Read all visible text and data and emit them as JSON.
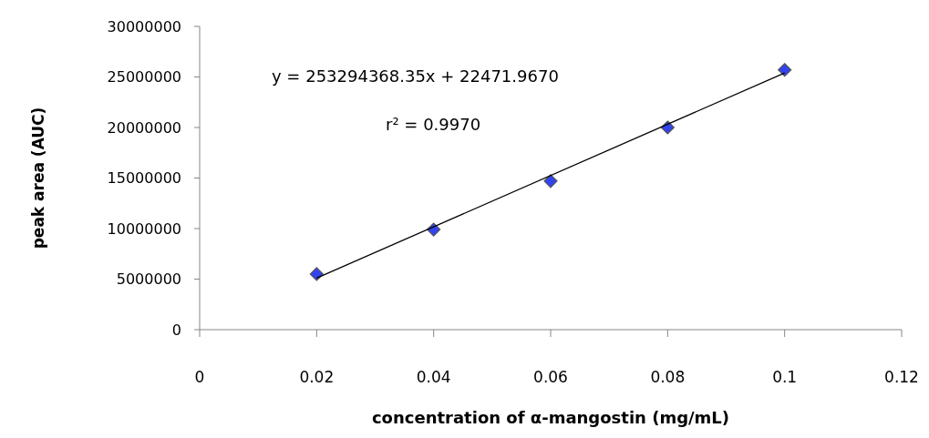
{
  "chart_data": {
    "type": "scatter",
    "xlabel": "concentration of α-mangostin (mg/mL)",
    "ylabel": "peak area (AUC)",
    "annotations": [
      "y = 253294368.35x + 22471.9670",
      "r² = 0.9970"
    ],
    "grid": false,
    "xlim": [
      0,
      0.12
    ],
    "xticks": [
      0,
      0.02,
      0.04,
      0.06,
      0.08,
      0.1,
      0.12
    ],
    "ylim": [
      0,
      30000000
    ],
    "yticks": [
      0,
      5000000,
      10000000,
      15000000,
      20000000,
      25000000,
      30000000
    ],
    "series": [
      {
        "marker": "diamond",
        "color": "#3344ee",
        "x": [
          0.02,
          0.04,
          0.06,
          0.08,
          0.1
        ],
        "values": [
          5500000,
          9900000,
          14700000,
          20000000,
          25700000
        ]
      },
      {
        "type": "line",
        "color": "#000000",
        "x": [
          0.02,
          0.1
        ],
        "values": [
          5100000,
          25400000
        ]
      }
    ]
  }
}
